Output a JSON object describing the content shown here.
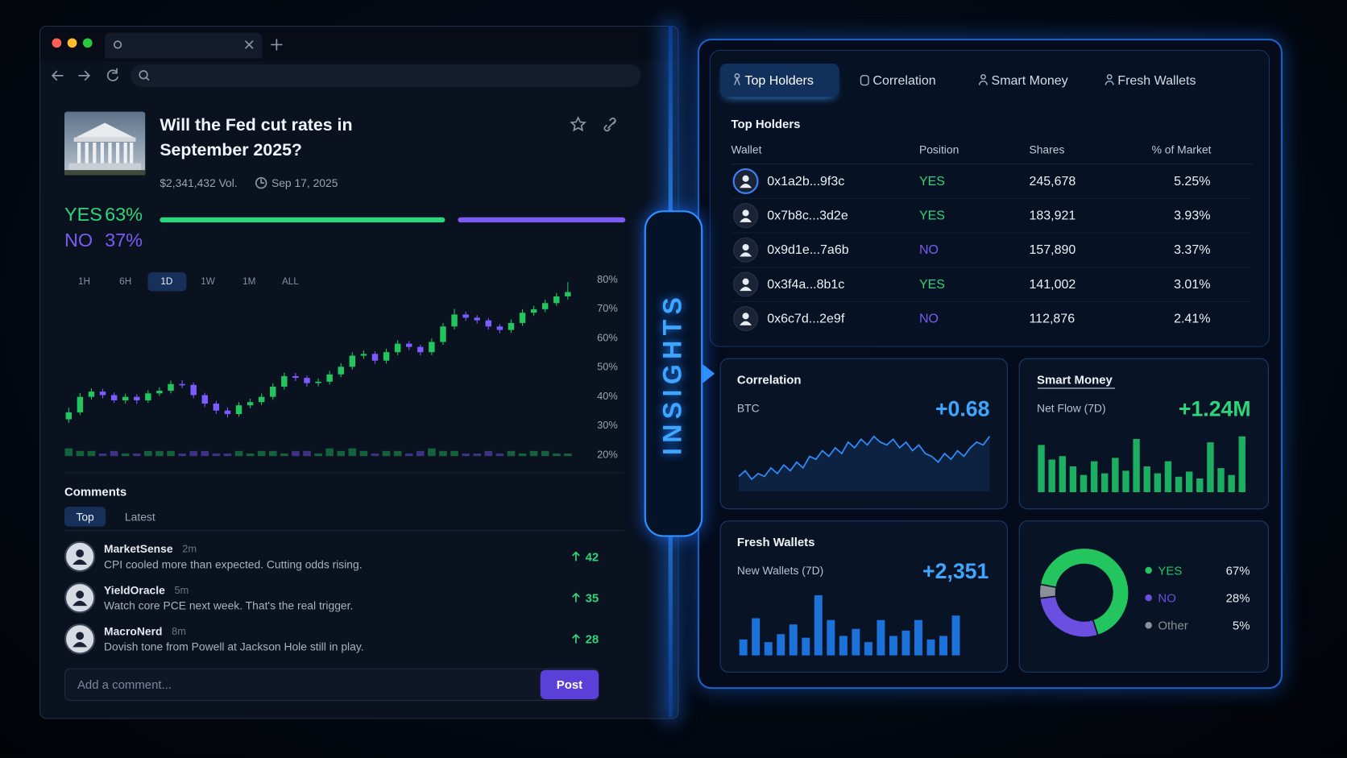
{
  "market": {
    "title": "Will the Fed cut rates in September 2025?",
    "volume": "$2,341,432 Vol.",
    "end_date": "Sep 17, 2025",
    "outcomes": {
      "names": [
        "YES",
        "NO"
      ],
      "values": [
        63,
        37
      ],
      "value_labels": [
        "63%",
        "37%"
      ],
      "colors": [
        "#2fd57a",
        "#7b5cf0"
      ]
    },
    "ranges": [
      "1H",
      "6H",
      "1D",
      "1W",
      "1M",
      "ALL"
    ],
    "active_range": 2,
    "price_chart": {
      "type": "candlestick",
      "ylim": [
        18,
        82
      ],
      "yticks": [
        {
          "value": 20,
          "label": "20%"
        },
        {
          "value": 30,
          "label": "30%"
        },
        {
          "value": 40,
          "label": "40%"
        },
        {
          "value": 50,
          "label": "50%"
        },
        {
          "value": 60,
          "label": "60%"
        },
        {
          "value": 70,
          "label": "70%"
        },
        {
          "value": 80,
          "label": "80%"
        }
      ],
      "open": [
        32.0,
        34.4,
        39.7,
        41.5,
        40.3,
        38.5,
        39.7,
        38.5,
        40.9,
        41.8,
        44.1,
        43.8,
        40.3,
        37.4,
        35.0,
        33.8,
        36.8,
        37.9,
        39.7,
        43.2,
        46.8,
        46.2,
        44.4,
        44.9,
        47.4,
        50.0,
        53.8,
        54.4,
        52.1,
        55.0,
        57.9,
        56.8,
        55.0,
        58.5,
        63.8,
        67.9,
        66.8,
        65.9,
        63.8,
        62.6,
        65.0,
        68.5,
        69.7,
        71.8,
        74.1
      ],
      "high": [
        36.0,
        41.0,
        42.6,
        42.4,
        41.2,
        40.8,
        40.6,
        42.0,
        43.0,
        45.3,
        45.4,
        44.6,
        41.1,
        38.3,
        36.1,
        37.9,
        39.1,
        40.9,
        44.4,
        48.0,
        47.9,
        47.0,
        46.0,
        48.6,
        51.3,
        55.0,
        55.6,
        55.3,
        56.2,
        59.1,
        58.8,
        57.6,
        59.7,
        65.0,
        69.8,
        68.9,
        67.7,
        66.7,
        64.6,
        66.2,
        69.7,
        70.9,
        73.0,
        75.3,
        79.0
      ],
      "low": [
        30.8,
        33.5,
        38.8,
        39.2,
        37.6,
        37.4,
        37.3,
        37.6,
        40.0,
        40.9,
        42.7,
        39.2,
        36.2,
        33.8,
        32.6,
        32.9,
        35.8,
        36.9,
        38.7,
        42.2,
        45.1,
        43.2,
        43.3,
        43.9,
        46.4,
        49.0,
        52.7,
        51.0,
        51.1,
        54.0,
        55.7,
        53.9,
        54.0,
        57.5,
        62.8,
        65.7,
        64.8,
        62.7,
        61.5,
        61.6,
        64.0,
        67.5,
        68.7,
        70.8,
        73.0
      ],
      "close": [
        34.4,
        39.7,
        41.5,
        40.3,
        38.5,
        39.7,
        38.5,
        40.9,
        41.8,
        44.1,
        43.8,
        40.3,
        37.4,
        35.0,
        33.8,
        36.8,
        37.9,
        39.7,
        43.2,
        46.8,
        46.2,
        44.4,
        44.9,
        47.4,
        50.0,
        53.8,
        54.4,
        52.1,
        55.0,
        57.9,
        56.8,
        55.0,
        58.5,
        63.8,
        67.9,
        66.8,
        65.9,
        63.8,
        62.6,
        65.0,
        68.5,
        69.7,
        71.8,
        74.1,
        75.6
      ],
      "volume": [
        3,
        2,
        2,
        1,
        2,
        1,
        1,
        2,
        2,
        2,
        1,
        2,
        2,
        1,
        1,
        2,
        1,
        2,
        2,
        1,
        2,
        2,
        1,
        3,
        2,
        3,
        2,
        1,
        2,
        2,
        1,
        2,
        3,
        2,
        2,
        1,
        1,
        2,
        1,
        2,
        1,
        2,
        2,
        1,
        1
      ],
      "up_color": "#22c55e",
      "down_color": "#7c5cff"
    }
  },
  "comments": {
    "title": "Comments",
    "tabs": [
      "Top",
      "Latest"
    ],
    "active_tab": 0,
    "items": [
      {
        "user": "MarketSense",
        "time": "2m",
        "text": "CPI cooled more than expected. Cutting odds rising.",
        "votes": 42
      },
      {
        "user": "YieldOracle",
        "time": "5m",
        "text": "Watch core PCE next week. That's the real trigger.",
        "votes": 35
      },
      {
        "user": "MacroNerd",
        "time": "8m",
        "text": "Dovish tone from Powell at Jackson Hole still in play.",
        "votes": 28
      }
    ],
    "input_placeholder": "Add a comment...",
    "submit": "Post"
  },
  "insights": {
    "label": "INSIGHTS",
    "tabs": [
      "Top Holders",
      "Correlation",
      "Smart Money",
      "Fresh Wallets"
    ],
    "active_tab": 0,
    "top_holders": {
      "title": "Top Holders",
      "columns": [
        "Wallet",
        "Position",
        "Shares",
        "% of Market"
      ],
      "rows": [
        [
          "0x1a2b...9f3c",
          "YES",
          "245,678",
          "5.25%"
        ],
        [
          "0x7b8c...3d2e",
          "YES",
          "183,921",
          "3.93%"
        ],
        [
          "0x9d1e...7a6b",
          "NO",
          "157,890",
          "3.37%"
        ],
        [
          "0x3f4a...8b1c",
          "YES",
          "141,002",
          "3.01%"
        ],
        [
          "0x6c7d...2e9f",
          "NO",
          "112,876",
          "2.41%"
        ]
      ]
    },
    "correlation": {
      "type": "line",
      "title": "Correlation",
      "metric": "BTC",
      "value": "+0.68",
      "color": "#2f8fff",
      "series": [
        2,
        4,
        1,
        3,
        2,
        5,
        3,
        6,
        4,
        7,
        5,
        9,
        8,
        11,
        9,
        12,
        10,
        14,
        12,
        15,
        13,
        16,
        14,
        13,
        15,
        12,
        14,
        11,
        13,
        10,
        9,
        7,
        10,
        8,
        11,
        9,
        12,
        14,
        13,
        16
      ]
    },
    "smart_money": {
      "type": "bar",
      "title": "Smart Money",
      "metric": "Net Flow (7D)",
      "value": "+1.24M",
      "color": "#1fbf68",
      "bars": [
        55,
        38,
        42,
        30,
        20,
        36,
        22,
        40,
        25,
        62,
        30,
        22,
        36,
        18,
        24,
        16,
        58,
        28,
        20,
        65
      ]
    },
    "fresh_wallets": {
      "type": "bar",
      "title": "Fresh Wallets",
      "metric": "New Wallets (7D)",
      "value": "+2,351",
      "color": "#1f7cf0",
      "bars": [
        18,
        42,
        15,
        24,
        35,
        20,
        68,
        40,
        22,
        30,
        15,
        40,
        22,
        28,
        40,
        18,
        22,
        45
      ]
    },
    "breakdown": {
      "type": "pie",
      "names": [
        "YES",
        "NO",
        "Other"
      ],
      "values": [
        67,
        28,
        5
      ],
      "value_labels": [
        "67%",
        "28%",
        "5%"
      ],
      "colors": [
        "#22c55e",
        "#6a4fe0",
        "#8a8f98"
      ]
    }
  }
}
